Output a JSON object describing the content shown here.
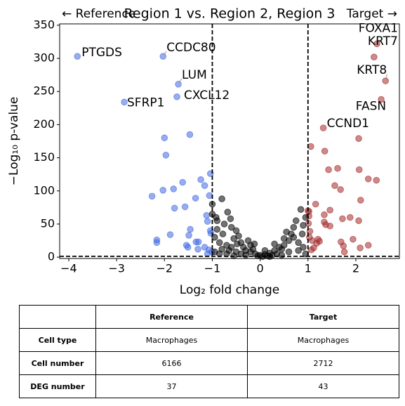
{
  "chart_data": {
    "type": "scatter",
    "title": "Region 1 vs. Region 2, Region 3",
    "left_note": "← Reference",
    "right_note": "Target →",
    "x_label": "Log₂ fold change",
    "y_label": "−Log₁₀ p-value",
    "xlim": [
      -4.19,
      2.91
    ],
    "ylim": [
      -2,
      352
    ],
    "xticks": [
      {
        "value": -4,
        "label": "−4"
      },
      {
        "value": -3,
        "label": "−3"
      },
      {
        "value": -2,
        "label": "−2"
      },
      {
        "value": -1,
        "label": "−1"
      },
      0,
      1,
      2
    ],
    "yticks": [
      0,
      50,
      100,
      150,
      200,
      250,
      300,
      350
    ],
    "vlines": [
      -1,
      1
    ],
    "hline": 1.3,
    "series": [
      {
        "color": "#4169e1",
        "x": [
          -3.82,
          -2.03,
          -1.71,
          -1.74,
          -2.84,
          -2.0,
          -1.47,
          -1.97,
          -1.04,
          -2.03,
          -1.81,
          -1.62,
          -1.24,
          -1.16,
          -2.26,
          -1.35,
          -1.06,
          -1.79,
          -1.57,
          -1.12,
          -1.88,
          -1.46,
          -1.49,
          -1.1,
          -1.04,
          -2.16,
          -2.16,
          -1.54,
          -1.51,
          -1.16,
          -1.29,
          -1.34,
          -1.03,
          -1.07,
          -1.01,
          -1.1,
          -1.3
        ],
        "values": [
          303,
          303,
          261,
          242,
          234,
          180,
          185,
          154,
          126,
          101,
          103,
          113,
          117,
          108,
          92,
          89,
          93,
          74,
          76,
          63,
          34,
          42,
          33,
          54,
          40,
          26,
          22,
          18,
          15,
          15,
          23,
          23,
          36,
          11,
          8,
          5,
          12
        ]
      },
      {
        "color": "#a52a2a",
        "x": [
          2.44,
          2.38,
          2.62,
          2.53,
          1.32,
          1.06,
          2.06,
          1.35,
          1.43,
          1.62,
          1.56,
          1.68,
          2.07,
          2.26,
          2.43,
          2.1,
          1.0,
          1.16,
          1.34,
          1.46,
          1.72,
          1.88,
          2.06,
          1.34,
          1.37,
          1.46,
          1.21,
          1.24,
          1.69,
          1.94,
          2.26,
          1.74,
          2.09,
          1.76,
          1.01,
          1.04,
          1.02,
          1.09,
          1.12,
          1.18,
          1.02,
          1.03,
          1.07
        ],
        "values": [
          322,
          302,
          266,
          238,
          195,
          167,
          179,
          160,
          132,
          134,
          108,
          102,
          132,
          118,
          116,
          86,
          70,
          80,
          64,
          71,
          58,
          60,
          55,
          53,
          49,
          47,
          27,
          24,
          23,
          27,
          18,
          17,
          14,
          8,
          51,
          39,
          62,
          25,
          14,
          21,
          69,
          30,
          11
        ]
      },
      {
        "color": "#000000",
        "x": [
          -1.0,
          -0.8,
          -0.68,
          -0.9,
          -0.75,
          -0.6,
          -0.5,
          -0.45,
          -0.55,
          -0.9,
          -0.95,
          -0.85,
          -0.7,
          -0.6,
          -0.4,
          -0.35,
          -0.3,
          -0.2,
          -0.1,
          0,
          0.1,
          0.2,
          0.3,
          0.4,
          0.5,
          0.6,
          0.55,
          0.7,
          0.8,
          0.9,
          0.85,
          0.95,
          0.75,
          0.65,
          0.45,
          -0.25,
          -0.15,
          -0.05,
          0.05,
          0.15,
          0.25,
          -0.5,
          -0.65,
          -0.8,
          -0.95,
          -0.7,
          0.35,
          0.6,
          0.8,
          0.9,
          0.95,
          -0.3,
          -0.4,
          -1.0,
          -0.92,
          -0.78,
          -0.62,
          -0.48,
          0.5,
          0.7,
          0.88,
          -0.2,
          0.1,
          -0.12,
          0.3,
          -0.85,
          0.45,
          0.2,
          -0.55
        ],
        "values": [
          80,
          88,
          68,
          55,
          50,
          45,
          40,
          32,
          28,
          42,
          30,
          22,
          18,
          15,
          22,
          15,
          10,
          8,
          5,
          3,
          4,
          6,
          10,
          15,
          18,
          25,
          38,
          30,
          22,
          48,
          72,
          60,
          55,
          35,
          12,
          25,
          12,
          2,
          1,
          2,
          3,
          8,
          10,
          12,
          8,
          5,
          5,
          8,
          10,
          15,
          5,
          3,
          5,
          65,
          60,
          35,
          58,
          20,
          28,
          45,
          35,
          18,
          10,
          20,
          20,
          5,
          3,
          1,
          2
        ]
      }
    ],
    "annotations": [
      {
        "text": "PTGDS",
        "x": -3.82,
        "y": 303
      },
      {
        "text": "CCDC80",
        "x": -2.03,
        "y": 303
      },
      {
        "text": "LUM",
        "x": -1.71,
        "y": 261
      },
      {
        "text": "CXCL12",
        "x": -1.74,
        "y": 242
      },
      {
        "text": "SFRP1",
        "x": -2.84,
        "y": 234
      },
      {
        "text": "FOXA1",
        "x": 2.44,
        "y": 322
      },
      {
        "text": "KRT7",
        "x": 2.38,
        "y": 302
      },
      {
        "text": "KRT8",
        "x": 2.62,
        "y": 266
      },
      {
        "text": "FASN",
        "x": 2.53,
        "y": 238
      },
      {
        "text": "CCND1",
        "x": 1.32,
        "y": 195
      }
    ]
  },
  "table": {
    "columns": [
      "Reference",
      "Target"
    ],
    "rows": [
      [
        "Cell type",
        "Macrophages",
        "Macrophages"
      ],
      [
        "Cell number",
        6166,
        2712
      ],
      [
        "DEG number",
        37,
        43
      ]
    ]
  }
}
